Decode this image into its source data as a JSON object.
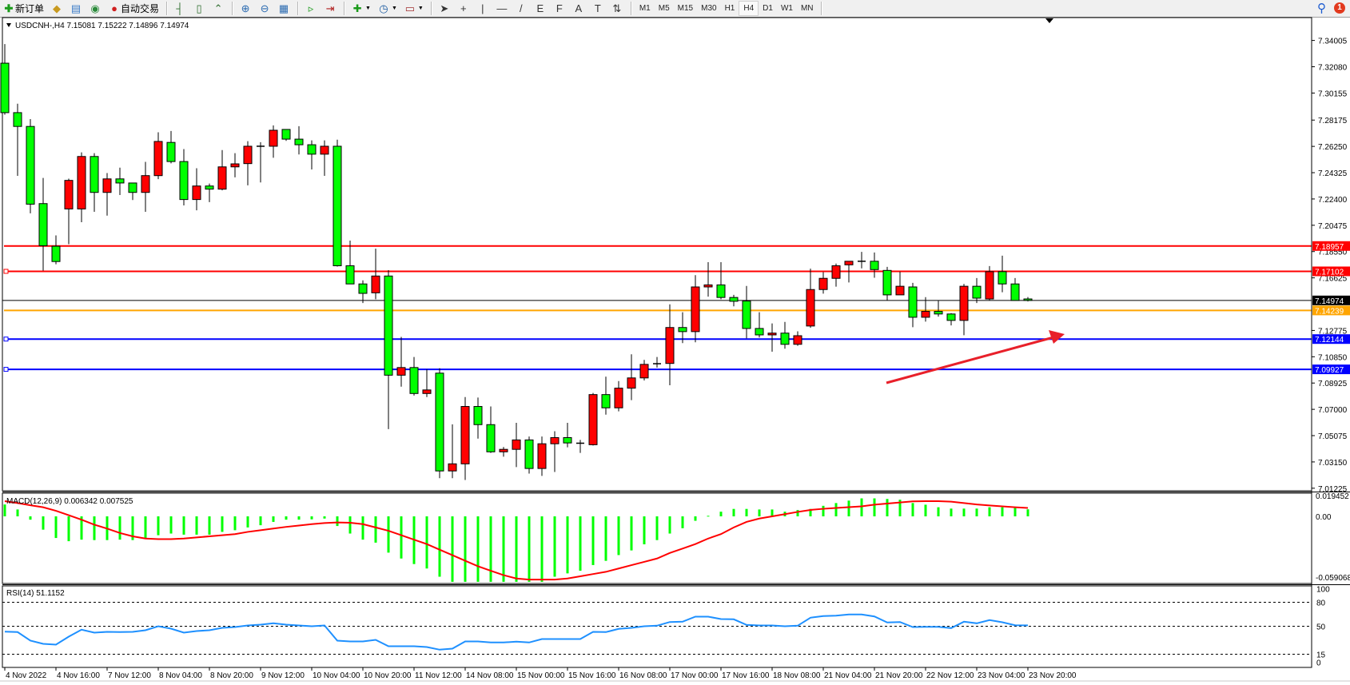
{
  "toolbar": {
    "items": [
      {
        "icon": "new-order-icon",
        "label": "新订单"
      },
      {
        "icon": "gold-bars-icon",
        "label": ""
      },
      {
        "icon": "market-watch-icon",
        "label": ""
      },
      {
        "icon": "signals-icon",
        "label": ""
      },
      {
        "icon": "autotrading-icon",
        "label": "自动交易"
      }
    ],
    "chart_tools": [
      "bar-chart-icon",
      "candlestick-icon",
      "line-chart-icon",
      "zoom-in-icon",
      "zoom-out-icon",
      "tile-windows-icon",
      "auto-scroll-icon",
      "chart-shift-icon"
    ],
    "dropdown_tools": [
      "new-chart-icon",
      "periods-clock-icon",
      "templates-icon"
    ],
    "draw_tools": [
      {
        "icon": "cursor-icon",
        "glyph": "➤"
      },
      {
        "icon": "crosshair-icon",
        "glyph": "+"
      },
      {
        "icon": "vertical-line-icon",
        "glyph": "|"
      },
      {
        "icon": "horizontal-line-icon",
        "glyph": "—"
      },
      {
        "icon": "trendline-icon",
        "glyph": "/"
      },
      {
        "icon": "fibonacci-e-icon",
        "glyph": "E"
      },
      {
        "icon": "fibonacci-f-icon",
        "glyph": "F"
      },
      {
        "icon": "text-icon",
        "glyph": "A"
      },
      {
        "icon": "text-label-icon",
        "glyph": "T"
      },
      {
        "icon": "arrows-icon",
        "glyph": "⇅"
      }
    ],
    "timeframes": [
      "M1",
      "M5",
      "M15",
      "M30",
      "H1",
      "H4",
      "D1",
      "W1",
      "MN"
    ],
    "active_timeframe": "H4",
    "notification_count": "1"
  },
  "chart": {
    "title": "USDCNH-,H4  7.15081 7.15222 7.14896 7.14974",
    "colors": {
      "bull": "#ff0000",
      "bear": "#00ff00",
      "wick": "#000000",
      "macd_hist": "#00ff00",
      "macd_signal": "#ff0000",
      "rsi": "#1e90ff"
    },
    "price_ticks": [
      "7.34005",
      "7.32080",
      "7.30155",
      "7.28175",
      "7.26250",
      "7.24325",
      "7.22400",
      "7.20475",
      "7.18550",
      "7.16625",
      "7.12775",
      "7.10850",
      "7.08925",
      "7.07000",
      "7.05075",
      "7.03150",
      "7.01225"
    ],
    "current_price": {
      "value": "7.14974",
      "color": "#000000"
    },
    "levels": [
      {
        "value": "7.18957",
        "color": "#ff0000"
      },
      {
        "value": "7.17102",
        "color": "#ff0000"
      },
      {
        "value": "7.14239",
        "color": "#ffa500"
      },
      {
        "value": "7.12144",
        "color": "#0000ff"
      },
      {
        "value": "7.09927",
        "color": "#0000ff"
      }
    ],
    "annotation_arrow_color": "#e8202a",
    "time_labels": [
      "4 Nov 2022",
      "4 Nov 16:00",
      "7 Nov 12:00",
      "8 Nov 04:00",
      "8 Nov 20:00",
      "9 Nov 12:00",
      "10 Nov 04:00",
      "10 Nov 20:00",
      "11 Nov 12:00",
      "14 Nov 08:00",
      "15 Nov 00:00",
      "15 Nov 16:00",
      "16 Nov 08:00",
      "17 Nov 00:00",
      "17 Nov 16:00",
      "18 Nov 08:00",
      "21 Nov 04:00",
      "21 Nov 20:00",
      "22 Nov 12:00",
      "23 Nov 04:00",
      "23 Nov 20:00"
    ],
    "macd": {
      "label": "MACD(12,26,9) 0.006342 0.007525",
      "axis": [
        "0.019452",
        "0.00",
        "-0.059068"
      ]
    },
    "rsi": {
      "label": "RSI(14) 51.1152",
      "axis": [
        "100",
        "80",
        "50",
        "15",
        "0"
      ]
    }
  },
  "chart_data": {
    "type": "candlestick",
    "symbol": "USDCNH-",
    "timeframe": "H4",
    "ylim": [
      7.01225,
      7.34005
    ],
    "ohlc": [
      [
        7.3234,
        7.3374,
        7.2857,
        7.2872
      ],
      [
        7.2872,
        7.2937,
        7.2409,
        7.2771
      ],
      [
        7.2771,
        7.2825,
        7.2135,
        7.2202
      ],
      [
        7.2206,
        7.2394,
        7.1715,
        7.1898
      ],
      [
        7.1894,
        7.1973,
        7.1762,
        7.1782
      ],
      [
        7.2167,
        7.2389,
        7.1909,
        7.2376
      ],
      [
        7.2167,
        7.2581,
        7.207,
        7.2551
      ],
      [
        7.2551,
        7.2575,
        7.2146,
        7.2288
      ],
      [
        7.2288,
        7.243,
        7.2118,
        7.2387
      ],
      [
        7.2387,
        7.2469,
        7.2269,
        7.2357
      ],
      [
        7.2357,
        7.2357,
        7.2232,
        7.2288
      ],
      [
        7.2288,
        7.2512,
        7.2146,
        7.2411
      ],
      [
        7.2411,
        7.2728,
        7.2385,
        7.2661
      ],
      [
        7.2654,
        7.2738,
        7.2501,
        7.2514
      ],
      [
        7.2514,
        7.2605,
        7.2193,
        7.2236
      ],
      [
        7.2236,
        7.2465,
        7.2157,
        7.2335
      ],
      [
        7.2335,
        7.2353,
        7.2217,
        7.2312
      ],
      [
        7.2312,
        7.2598,
        7.2303,
        7.2475
      ],
      [
        7.2475,
        7.2575,
        7.2398,
        7.2497
      ],
      [
        7.2499,
        7.2663,
        7.234,
        7.2626
      ],
      [
        7.2626,
        7.2656,
        7.2361,
        7.2626
      ],
      [
        7.2626,
        7.2779,
        7.2542,
        7.2743
      ],
      [
        7.2749,
        7.2749,
        7.2665,
        7.2678
      ],
      [
        7.2678,
        7.2773,
        7.2566,
        7.2637
      ],
      [
        7.2637,
        7.2669,
        7.2456,
        7.2568
      ],
      [
        7.2568,
        7.2669,
        7.2409,
        7.2626
      ],
      [
        7.2626,
        7.2674,
        7.1745,
        7.1751
      ],
      [
        7.1751,
        7.1935,
        7.1618,
        7.1618
      ],
      [
        7.1618,
        7.1644,
        7.1478,
        7.1549
      ],
      [
        7.1553,
        7.1876,
        7.1506,
        7.1676
      ],
      [
        7.1676,
        7.1719,
        7.0555,
        7.095
      ],
      [
        7.095,
        7.123,
        7.0866,
        7.1006
      ],
      [
        7.1006,
        7.1083,
        7.0801,
        7.0816
      ],
      [
        7.0816,
        7.0993,
        7.079,
        7.0842
      ],
      [
        7.0965,
        7.1001,
        7.0196,
        7.0249
      ],
      [
        7.0249,
        7.059,
        7.0196,
        7.0301
      ],
      [
        7.0301,
        7.079,
        7.0183,
        7.0721
      ],
      [
        7.0721,
        7.0786,
        7.0486,
        7.0588
      ],
      [
        7.0588,
        7.0721,
        7.0381,
        7.0389
      ],
      [
        7.0389,
        7.0424,
        7.0353,
        7.0407
      ],
      [
        7.0407,
        7.0601,
        7.0277,
        7.0476
      ],
      [
        7.0476,
        7.0501,
        7.023,
        7.0267
      ],
      [
        7.0267,
        7.0501,
        7.0213,
        7.0448
      ],
      [
        7.0448,
        7.054,
        7.0241,
        7.0493
      ],
      [
        7.0493,
        7.0601,
        7.0422,
        7.0454
      ],
      [
        7.0452,
        7.0476,
        7.0381,
        7.0452
      ],
      [
        7.0441,
        7.082,
        7.0435,
        7.0808
      ],
      [
        7.0808,
        7.0939,
        7.0661,
        7.0711
      ],
      [
        7.0711,
        7.0907,
        7.0685,
        7.0855
      ],
      [
        7.0855,
        7.1103,
        7.0767,
        7.093
      ],
      [
        7.093,
        7.1062,
        7.0911,
        7.1029
      ],
      [
        7.1034,
        7.1083,
        7.1006,
        7.1034
      ],
      [
        7.1036,
        7.1469,
        7.0876,
        7.1299
      ],
      [
        7.1299,
        7.1411,
        7.1185,
        7.1269
      ],
      [
        7.1269,
        7.1682,
        7.1191,
        7.1596
      ],
      [
        7.1596,
        7.1777,
        7.1525,
        7.1611
      ],
      [
        7.1611,
        7.1777,
        7.1506,
        7.1519
      ],
      [
        7.1519,
        7.1538,
        7.1454,
        7.1491
      ],
      [
        7.1493,
        7.1603,
        7.1219,
        7.1292
      ],
      [
        7.1292,
        7.1411,
        7.1226,
        7.1245
      ],
      [
        7.1245,
        7.1329,
        7.1122,
        7.1258
      ],
      [
        7.1258,
        7.134,
        7.1144,
        7.1176
      ],
      [
        7.1176,
        7.1271,
        7.1165,
        7.1239
      ],
      [
        7.131,
        7.173,
        7.1297,
        7.1577
      ],
      [
        7.1577,
        7.1704,
        7.1547,
        7.1659
      ],
      [
        7.1659,
        7.1767,
        7.1598,
        7.1751
      ],
      [
        7.1758,
        7.1784,
        7.1629,
        7.1784
      ],
      [
        7.1784,
        7.1853,
        7.1732,
        7.1784
      ],
      [
        7.1784,
        7.1848,
        7.1663,
        7.1723
      ],
      [
        7.1717,
        7.1743,
        7.1497,
        7.1538
      ],
      [
        7.1538,
        7.1708,
        7.1538,
        7.1601
      ],
      [
        7.1596,
        7.1626,
        7.1301,
        7.1374
      ],
      [
        7.1374,
        7.1521,
        7.1342,
        7.1417
      ],
      [
        7.1417,
        7.1495,
        7.1379,
        7.1398
      ],
      [
        7.1398,
        7.1404,
        7.1314,
        7.1351
      ],
      [
        7.1351,
        7.1618,
        7.1243,
        7.1601
      ],
      [
        7.1601,
        7.1661,
        7.1478,
        7.1514
      ],
      [
        7.1508,
        7.1749,
        7.1499,
        7.1708
      ],
      [
        7.1708,
        7.1825,
        7.1557,
        7.1618
      ],
      [
        7.1618,
        7.1661,
        7.1497,
        7.1497
      ],
      [
        7.15081,
        7.15222,
        7.14896,
        7.14974
      ]
    ],
    "macd_ylim": [
      -0.059068,
      0.019452
    ],
    "macd_hist": [
      0.0107,
      0.0062,
      -0.003,
      -0.012,
      -0.0195,
      -0.0224,
      -0.021,
      -0.0214,
      -0.0214,
      -0.021,
      -0.0214,
      -0.02,
      -0.017,
      -0.0155,
      -0.0165,
      -0.0165,
      -0.0165,
      -0.014,
      -0.0125,
      -0.01,
      -0.008,
      -0.005,
      -0.003,
      -0.003,
      -0.0027,
      -0.002,
      -0.0087,
      -0.0155,
      -0.021,
      -0.0237,
      -0.0327,
      -0.038,
      -0.043,
      -0.047,
      -0.0544,
      -0.059,
      -0.059,
      -0.059,
      -0.059,
      -0.059,
      -0.059,
      -0.059,
      -0.059,
      -0.0544,
      -0.0514,
      -0.049,
      -0.0439,
      -0.0401,
      -0.0349,
      -0.0307,
      -0.0252,
      -0.0214,
      -0.0155,
      -0.0107,
      -0.004,
      0.0005,
      0.0042,
      0.0067,
      0.0067,
      0.0062,
      0.0062,
      0.0042,
      0.0057,
      0.0067,
      0.0095,
      0.012,
      0.0142,
      0.0162,
      0.0162,
      0.0157,
      0.015,
      0.012,
      0.0105,
      0.0082,
      0.007,
      0.007,
      0.007,
      0.0082,
      0.0082,
      0.0082,
      0.006342
    ],
    "macd_signal": [
      0.0137,
      0.012,
      0.01,
      0.0082,
      0.005,
      0.001,
      -0.003,
      -0.0075,
      -0.011,
      -0.015,
      -0.018,
      -0.02,
      -0.0205,
      -0.0205,
      -0.02,
      -0.019,
      -0.018,
      -0.017,
      -0.016,
      -0.014,
      -0.0125,
      -0.011,
      -0.0095,
      -0.0083,
      -0.007,
      -0.006,
      -0.0055,
      -0.0058,
      -0.007,
      -0.01,
      -0.013,
      -0.017,
      -0.021,
      -0.025,
      -0.03,
      -0.035,
      -0.04,
      -0.045,
      -0.049,
      -0.053,
      -0.056,
      -0.057,
      -0.057,
      -0.057,
      -0.056,
      -0.054,
      -0.052,
      -0.05,
      -0.047,
      -0.044,
      -0.041,
      -0.038,
      -0.033,
      -0.029,
      -0.025,
      -0.02,
      -0.016,
      -0.01,
      -0.005,
      -0.002,
      0,
      0.002,
      0.004,
      0.0058,
      0.0068,
      0.0076,
      0.0083,
      0.009,
      0.0105,
      0.0115,
      0.0125,
      0.0135,
      0.0137,
      0.0137,
      0.0132,
      0.012,
      0.0107,
      0.0098,
      0.009,
      0.0082,
      0.007525
    ],
    "rsi_levels": [
      80,
      50,
      15
    ],
    "rsi_ylim": [
      0,
      100
    ],
    "rsi": [
      43.3,
      42.7,
      32,
      28,
      27,
      37,
      45.7,
      42,
      43,
      42.7,
      43,
      45,
      50,
      47,
      42,
      44,
      45,
      48,
      49,
      51,
      52,
      53.7,
      52,
      51,
      50,
      51,
      32,
      31,
      31,
      33,
      25,
      25,
      25,
      24,
      20.7,
      22,
      31,
      31,
      29.7,
      29.7,
      30.7,
      29.7,
      34,
      34,
      34,
      34,
      43,
      42.7,
      46.7,
      48,
      50,
      50.7,
      55.3,
      55.7,
      62,
      62,
      59,
      58.7,
      51.7,
      51,
      51,
      50,
      50.7,
      60.7,
      62.7,
      63.3,
      64.7,
      64.7,
      62.3,
      54.7,
      55.3,
      49,
      49.3,
      49.3,
      47.7,
      55.7,
      53.7,
      57.7,
      55,
      51.3,
      51.1152
    ]
  }
}
